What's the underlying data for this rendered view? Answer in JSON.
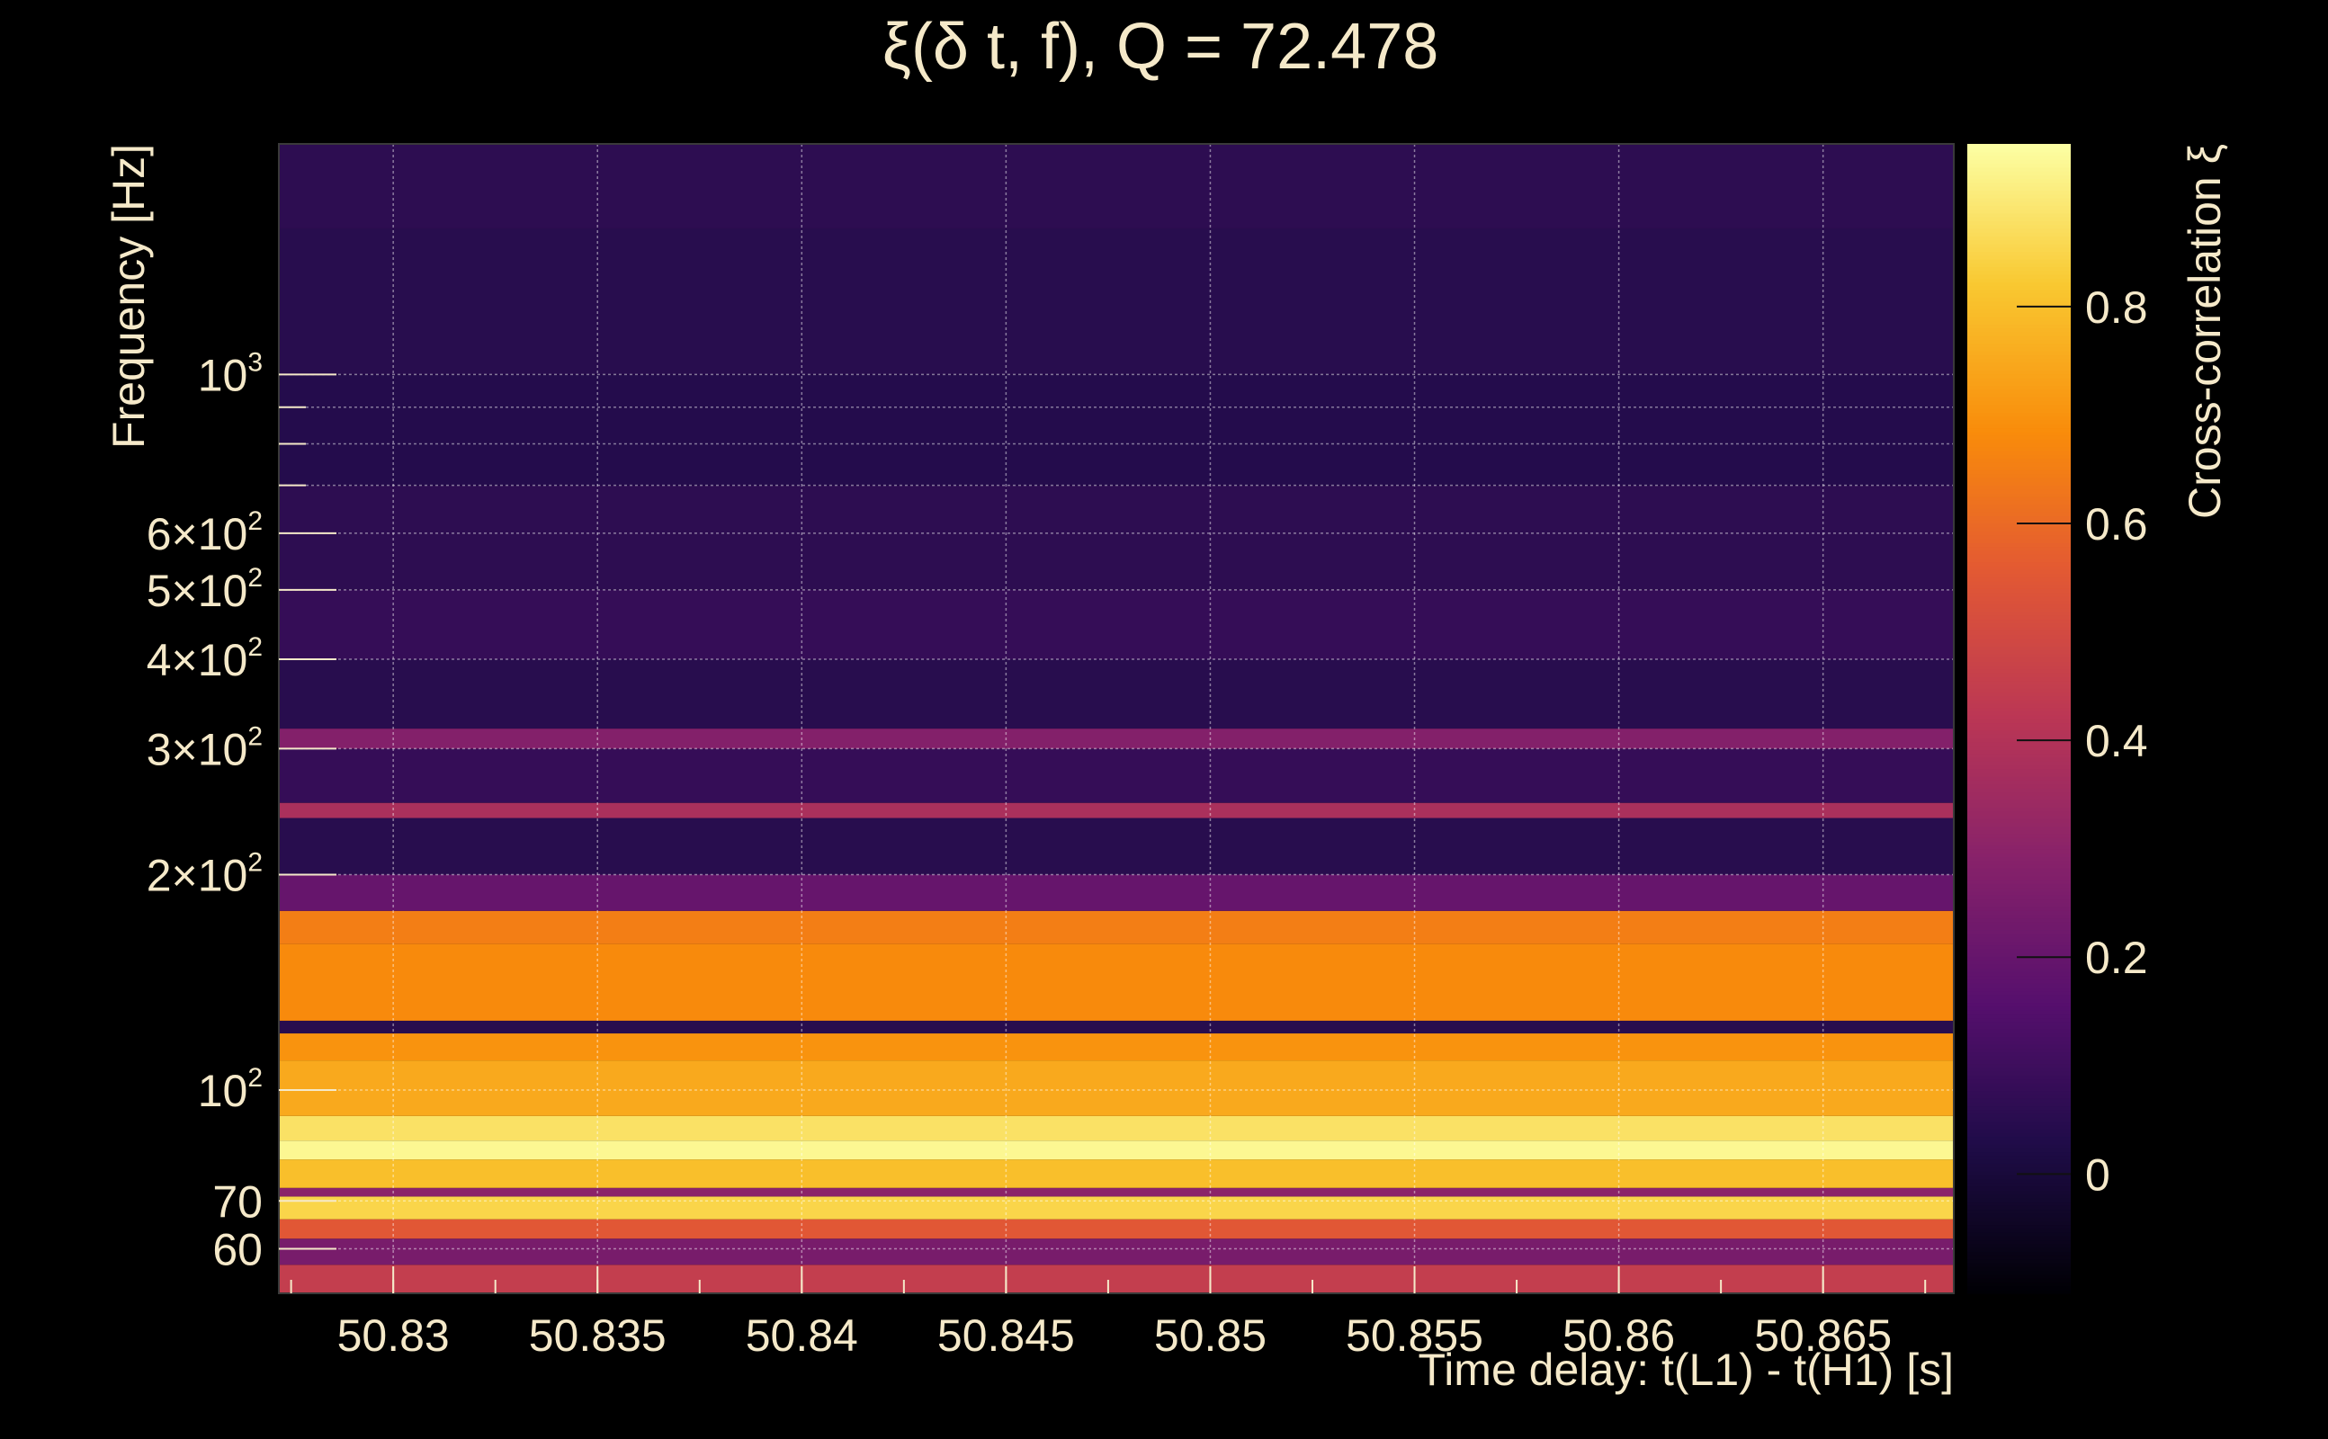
{
  "chart_data": {
    "type": "heatmap",
    "title": "ξ(δ t, f), Q = 72.478",
    "xlabel": "Time delay: t(L1) - t(H1) [s]",
    "ylabel": "Frequency [Hz]",
    "colorbar_label": "Cross-correlation ξ",
    "xlim": [
      50.8272,
      50.8682
    ],
    "ylim": [
      52,
      2100
    ],
    "yscale": "log",
    "grid": true,
    "colormap": "inferno",
    "x_ticks": [
      {
        "value": 50.83,
        "label": "50.83"
      },
      {
        "value": 50.835,
        "label": "50.835"
      },
      {
        "value": 50.84,
        "label": "50.84"
      },
      {
        "value": 50.845,
        "label": "50.845"
      },
      {
        "value": 50.85,
        "label": "50.85"
      },
      {
        "value": 50.855,
        "label": "50.855"
      },
      {
        "value": 50.86,
        "label": "50.86"
      },
      {
        "value": 50.865,
        "label": "50.865"
      }
    ],
    "y_ticks": [
      {
        "value": 60,
        "mant": "60",
        "exp": ""
      },
      {
        "value": 70,
        "mant": "70",
        "exp": ""
      },
      {
        "value": 100,
        "mant": "10",
        "exp": "2"
      },
      {
        "value": 200,
        "mant": "2×10",
        "exp": "2"
      },
      {
        "value": 300,
        "mant": "3×10",
        "exp": "2"
      },
      {
        "value": 400,
        "mant": "4×10",
        "exp": "2"
      },
      {
        "value": 500,
        "mant": "5×10",
        "exp": "2"
      },
      {
        "value": 600,
        "mant": "6×10",
        "exp": "2"
      },
      {
        "value": 1000,
        "mant": "10",
        "exp": "3"
      }
    ],
    "y_minor_ticks": [
      700,
      800,
      900
    ],
    "colorbar": {
      "range": [
        -0.11,
        0.95
      ],
      "ticks": [
        {
          "value": 0,
          "label": "0"
        },
        {
          "value": 0.2,
          "label": "0.2"
        },
        {
          "value": 0.4,
          "label": "0.4"
        },
        {
          "value": 0.6,
          "label": "0.6"
        },
        {
          "value": 0.8,
          "label": "0.8"
        }
      ]
    },
    "bands": [
      {
        "f_low": 52,
        "f_high": 57,
        "value": 0.45
      },
      {
        "f_low": 57,
        "f_high": 62,
        "value": 0.25
      },
      {
        "f_low": 62,
        "f_high": 66,
        "value": 0.55
      },
      {
        "f_low": 66,
        "f_high": 71,
        "value": 0.85
      },
      {
        "f_low": 71,
        "f_high": 73,
        "value": 0.3
      },
      {
        "f_low": 73,
        "f_high": 80,
        "value": 0.8
      },
      {
        "f_low": 80,
        "f_high": 85,
        "value": 0.93
      },
      {
        "f_low": 85,
        "f_high": 92,
        "value": 0.88
      },
      {
        "f_low": 92,
        "f_high": 110,
        "value": 0.75
      },
      {
        "f_low": 110,
        "f_high": 120,
        "value": 0.7
      },
      {
        "f_low": 120,
        "f_high": 125,
        "value": 0.05
      },
      {
        "f_low": 125,
        "f_high": 160,
        "value": 0.68
      },
      {
        "f_low": 160,
        "f_high": 178,
        "value": 0.65
      },
      {
        "f_low": 178,
        "f_high": 200,
        "value": 0.2
      },
      {
        "f_low": 200,
        "f_high": 240,
        "value": 0.05
      },
      {
        "f_low": 240,
        "f_high": 252,
        "value": 0.38
      },
      {
        "f_low": 252,
        "f_high": 300,
        "value": 0.08
      },
      {
        "f_low": 300,
        "f_high": 320,
        "value": 0.28
      },
      {
        "f_low": 320,
        "f_high": 400,
        "value": 0.05
      },
      {
        "f_low": 400,
        "f_high": 500,
        "value": 0.08
      },
      {
        "f_low": 500,
        "f_high": 700,
        "value": 0.06
      },
      {
        "f_low": 700,
        "f_high": 1000,
        "value": 0.04
      },
      {
        "f_low": 1000,
        "f_high": 1600,
        "value": 0.05
      },
      {
        "f_low": 1600,
        "f_high": 2100,
        "value": 0.06
      }
    ]
  }
}
